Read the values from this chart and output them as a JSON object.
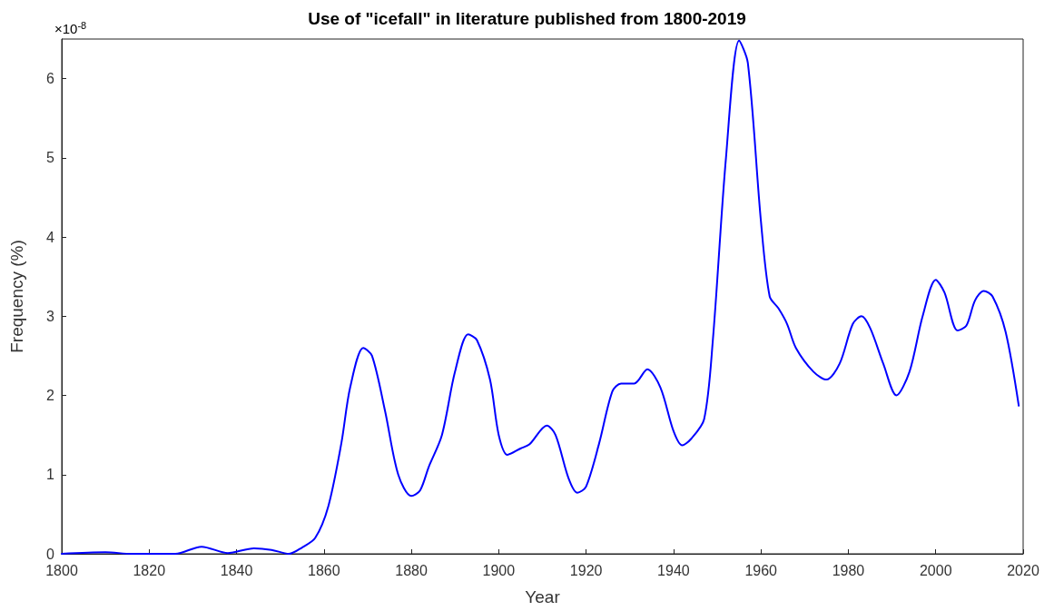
{
  "chart_data": {
    "type": "line",
    "title": "Use of \"icefall\" in literature published from 1800-2019",
    "xlabel": "Year",
    "ylabel": "Frequency (%)",
    "annotations": [
      "×10$^{-8}$"
    ],
    "x": [
      1800,
      1810,
      1816,
      1820,
      1826,
      1832,
      1838,
      1844,
      1848,
      1852,
      1855,
      1858,
      1861,
      1864,
      1866,
      1869,
      1871,
      1874,
      1877,
      1880,
      1882,
      1884,
      1887,
      1890,
      1893,
      1895,
      1898,
      1900,
      1902,
      1905,
      1907,
      1911,
      1913,
      1916,
      1918,
      1920,
      1923,
      1926,
      1928,
      1931,
      1934,
      1937,
      1940,
      1942,
      1944,
      1947,
      1949,
      1952,
      1955,
      1957,
      1960,
      1962,
      1964,
      1966,
      1968,
      1972,
      1975,
      1978,
      1981,
      1983,
      1985,
      1988,
      1991,
      1994,
      1997,
      2000,
      2002,
      2005,
      2007,
      2009,
      2011,
      2013,
      2016,
      2019
    ],
    "series": [
      {
        "color": "#0000ff",
        "values": [
          0,
          0.02,
          0,
          0,
          0,
          0.09,
          0.01,
          0.07,
          0.05,
          0,
          0.08,
          0.2,
          0.6,
          1.4,
          2.1,
          2.6,
          2.5,
          1.8,
          1.0,
          0.73,
          0.8,
          1.1,
          1.5,
          2.3,
          2.77,
          2.7,
          2.2,
          1.5,
          1.25,
          1.33,
          1.38,
          1.62,
          1.5,
          0.95,
          0.77,
          0.85,
          1.4,
          2.05,
          2.15,
          2.15,
          2.33,
          2.1,
          1.55,
          1.37,
          1.45,
          1.7,
          2.7,
          5.0,
          6.48,
          6.2,
          4.2,
          3.25,
          3.1,
          2.9,
          2.6,
          2.3,
          2.2,
          2.4,
          2.9,
          3.0,
          2.85,
          2.4,
          2.0,
          2.3,
          3.0,
          3.46,
          3.3,
          2.82,
          2.88,
          3.2,
          3.32,
          3.25,
          2.8,
          1.87
        ]
      }
    ],
    "xlim": [
      1800,
      2020
    ],
    "xticks": [
      1800,
      1820,
      1840,
      1860,
      1880,
      1900,
      1920,
      1940,
      1960,
      1980,
      2000,
      2020
    ],
    "ylim": [
      0,
      6.5
    ],
    "yticks": [
      0,
      1,
      2,
      3,
      4,
      5,
      6
    ],
    "grid": false,
    "marker": "none",
    "line_style": "solid"
  }
}
